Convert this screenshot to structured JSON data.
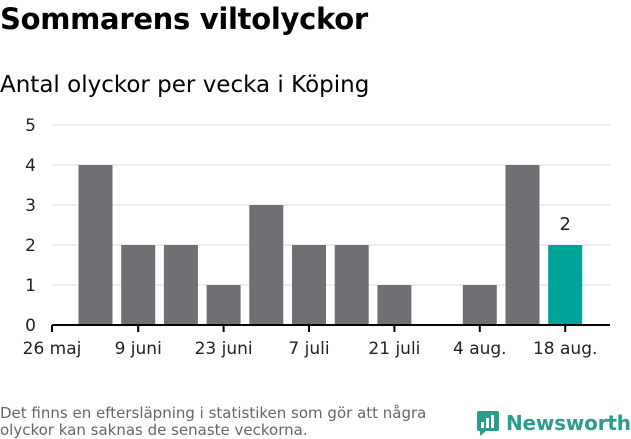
{
  "title": "Sommarens viltolyckor",
  "subtitle": "Antal olyckor per vecka i Köping",
  "footnote": "Det finns en eftersläpning i statistiken som gör att några olyckor kan saknas de senaste veckorna.",
  "brand": {
    "name": "Newsworthy",
    "color": "#2a9d8f",
    "icon": "newsworthy-logo-icon"
  },
  "colors": {
    "bar": "#706f74",
    "highlight": "#00a39a",
    "grid": "#dddddd",
    "axis": "#000000"
  },
  "chart_data": {
    "type": "bar",
    "title": "Sommarens viltolyckor",
    "subtitle": "Antal olyckor per vecka i Köping",
    "xlabel": "",
    "ylabel": "",
    "ylim": [
      0,
      5
    ],
    "yticks": [
      0,
      1,
      2,
      3,
      4,
      5
    ],
    "grid": true,
    "legend": "none",
    "x_tick_labels": [
      "26 maj",
      "9 juni",
      "23 juni",
      "7 juli",
      "21 juli",
      "4 aug.",
      "18 aug."
    ],
    "values": [
      4,
      2,
      2,
      1,
      3,
      2,
      2,
      1,
      0,
      1,
      4,
      2
    ],
    "highlight_index": 11,
    "data_labels": [
      {
        "index": 11,
        "text": "2"
      }
    ]
  }
}
